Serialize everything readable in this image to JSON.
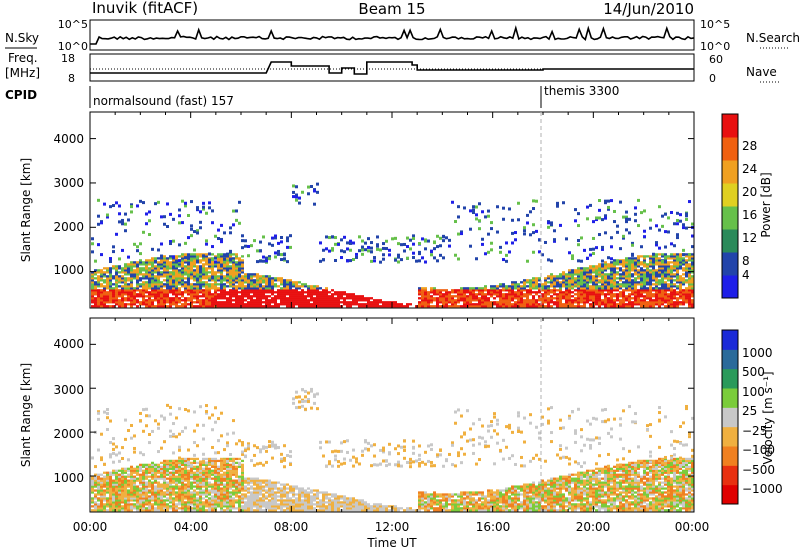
{
  "header": {
    "station": "Inuvik (fitACF)",
    "beam": "Beam 15",
    "date": "14/Jun/2010"
  },
  "top_panels": {
    "nsky_label": "N.Sky",
    "nsky_ticks": [
      "10^5",
      "10^0"
    ],
    "nsearch_label": "N.Search",
    "nsearch_ticks": [
      "10^5",
      "10^0"
    ],
    "freq_label": "Freq.",
    "freq_unit": "[MHz]",
    "freq_ticks": [
      "18",
      "8"
    ],
    "nave_label": "Nave",
    "nave_ticks": [
      "60",
      "0"
    ],
    "cpid_label": "CPID",
    "cpid_segments": [
      {
        "name": "normalsound (fast) 157",
        "start": 0
      },
      {
        "name": "themis 3300",
        "start": 18
      }
    ]
  },
  "chart_data": [
    {
      "type": "heatmap",
      "title": "",
      "xlabel": "",
      "ylabel": "Slant Range [km]",
      "x_range": [
        0,
        24
      ],
      "ylim": [
        180,
        4600
      ],
      "y_ticks": [
        "1000",
        "2000",
        "3000",
        "4000"
      ],
      "colorbar": {
        "label": "Power [dB]",
        "ticks": [
          "4",
          "8",
          "12",
          "16",
          "20",
          "24",
          "28"
        ],
        "colors": [
          "#1f1fe8",
          "#2244aa",
          "#2a8a5a",
          "#66c04a",
          "#e0d020",
          "#f0a020",
          "#f06010",
          "#e81010"
        ]
      }
    },
    {
      "type": "heatmap",
      "title": "",
      "xlabel": "Time UT",
      "ylabel": "Slant Range [km]",
      "x_range": [
        0,
        24
      ],
      "ylim": [
        180,
        4600
      ],
      "x_ticks": [
        "00:00",
        "04:00",
        "08:00",
        "12:00",
        "16:00",
        "20:00",
        "00:00"
      ],
      "y_ticks": [
        "1000",
        "2000",
        "3000",
        "4000"
      ],
      "colorbar": {
        "label": "Velocity [m s⁻¹]",
        "ticks": [
          "1000",
          "500",
          "100",
          "25",
          "−25",
          "−100",
          "−500",
          "−1000"
        ],
        "colors": [
          "#1a2ad8",
          "#2a6a9a",
          "#2a9a5a",
          "#7acc3a",
          "#c8c8c8",
          "#f0b040",
          "#f08020",
          "#e83010",
          "#e00000"
        ]
      }
    }
  ],
  "colors": {
    "axis": "#000000",
    "mode_line": "#b0b0b0"
  }
}
